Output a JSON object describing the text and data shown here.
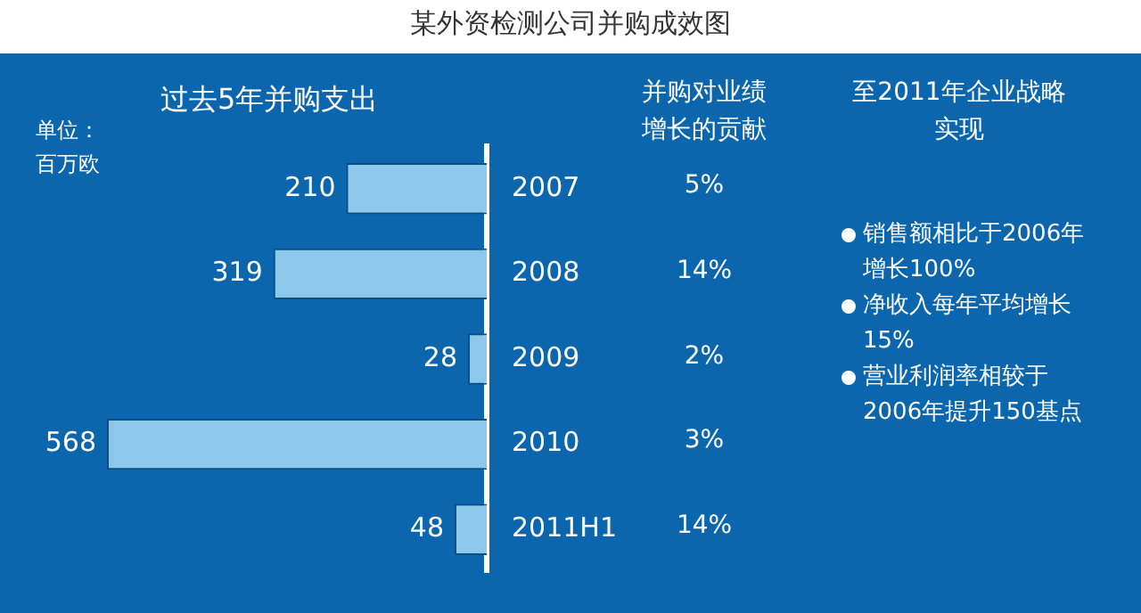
{
  "chart_data": [
    {
      "type": "bar",
      "orientation": "horizontal",
      "title": "某外资检测公司并购成效图",
      "subtitle": "过去5年并购支出",
      "annotations": [
        "单位：百万欧"
      ],
      "categories": [
        "2007",
        "2008",
        "2009",
        "2010",
        "2011H1"
      ],
      "values": [
        210,
        319,
        28,
        568,
        48
      ],
      "color": "#8dc8ea",
      "data_labels": true,
      "tick_labels": "y",
      "legend": false
    },
    {
      "type": "other",
      "title": "并购对业绩增长的贡献",
      "annotations": [
        "5%",
        "14%",
        "2%",
        "3%",
        "14%"
      ]
    },
    {
      "type": "other",
      "title": "至2011年企业战略实现",
      "annotations": [
        "销售额相比于2006年增长100%",
        "净收入每年平均增长15%",
        "营业利润率相较于2006年提升150基点"
      ]
    }
  ]
}
